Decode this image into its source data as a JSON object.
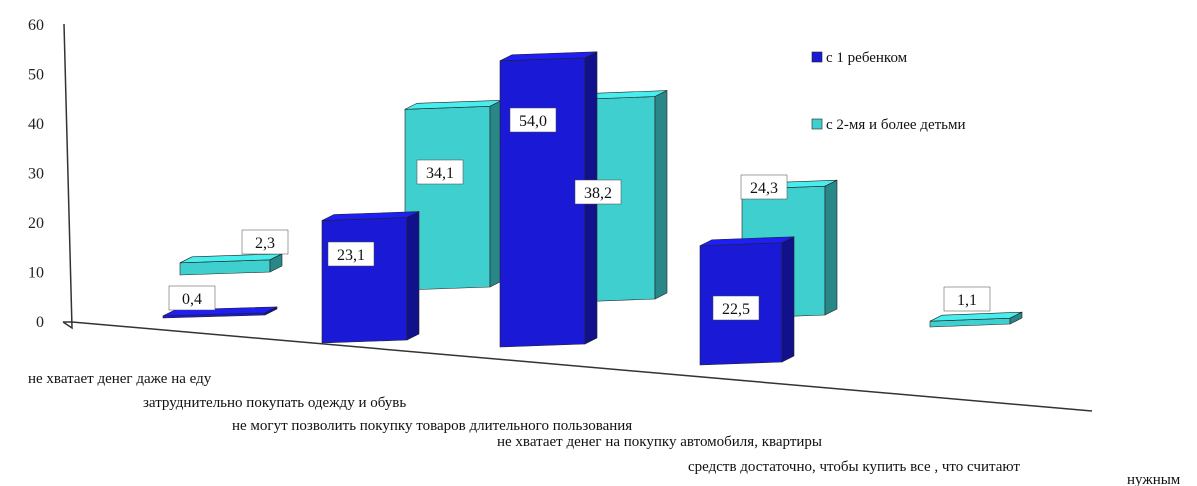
{
  "chart_data": {
    "type": "bar",
    "style": "3d-perspective",
    "categories": [
      "не хватает денег даже на еду",
      "затруднительно покупать одежду и обувь",
      "не могут позволить покупку  товаров длительного пользования",
      "не хватает денег  на покупку автомобиля, квартиры",
      "средств достаточно, чтобы купить все , что считают"
    ],
    "category_overflow_text": "нужным",
    "series": [
      {
        "name": "с 1 ребенком",
        "values": [
          0.4,
          23.1,
          54.0,
          22.5,
          null
        ],
        "labels": [
          "0,4",
          "23,1",
          "54,0",
          "22,5",
          ""
        ],
        "color": "#1a1ad6"
      },
      {
        "name": "с 2-мя и более детьми",
        "values": [
          2.3,
          34.1,
          38.2,
          24.3,
          1.1
        ],
        "labels": [
          "2,3",
          "34,1",
          "38,2",
          "24,3",
          "1,1"
        ],
        "color": "#3fcfcf"
      }
    ],
    "yticks": [
      "0",
      "10",
      "20",
      "30",
      "40",
      "50",
      "60"
    ],
    "ylim": [
      0,
      60
    ],
    "legend_position": "right",
    "grid": false
  }
}
